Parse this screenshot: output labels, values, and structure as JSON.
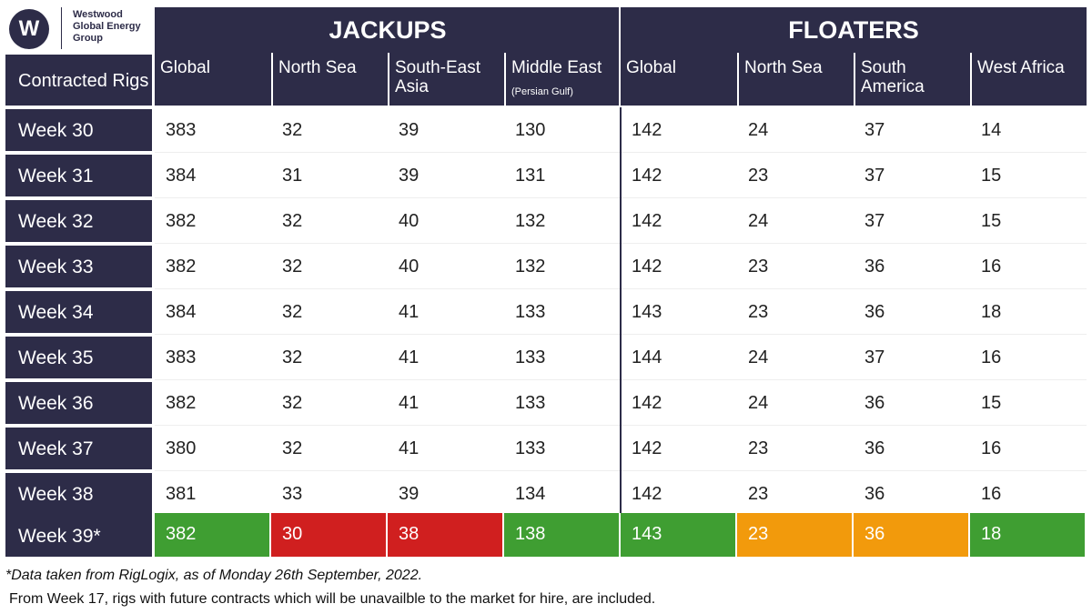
{
  "logo": {
    "mark": "W",
    "lines": [
      "Westwood",
      "Global Energy",
      "Group"
    ]
  },
  "table": {
    "row_header_title": "Contracted Rigs",
    "groups": [
      "JACKUPS",
      "FLOATERS"
    ],
    "columns": [
      {
        "label": "Global"
      },
      {
        "label": "North Sea"
      },
      {
        "label": "South-East Asia"
      },
      {
        "label": "Middle East",
        "note": "(Persian Gulf)"
      },
      {
        "label": "Global"
      },
      {
        "label": "North Sea"
      },
      {
        "label": "South America"
      },
      {
        "label": "West Africa"
      }
    ],
    "rows": [
      {
        "label": "Week 30",
        "values": [
          383,
          32,
          39,
          130,
          142,
          24,
          37,
          14
        ]
      },
      {
        "label": "Week 31",
        "values": [
          384,
          31,
          39,
          131,
          142,
          23,
          37,
          15
        ]
      },
      {
        "label": "Week 32",
        "values": [
          382,
          32,
          40,
          132,
          142,
          24,
          37,
          15
        ]
      },
      {
        "label": "Week 33",
        "values": [
          382,
          32,
          40,
          132,
          142,
          23,
          36,
          16
        ]
      },
      {
        "label": "Week 34",
        "values": [
          384,
          32,
          41,
          133,
          143,
          23,
          36,
          18
        ]
      },
      {
        "label": "Week 35",
        "values": [
          383,
          32,
          41,
          133,
          144,
          24,
          37,
          16
        ]
      },
      {
        "label": "Week 36",
        "values": [
          382,
          32,
          41,
          133,
          142,
          24,
          36,
          15
        ]
      },
      {
        "label": "Week 37",
        "values": [
          380,
          32,
          41,
          133,
          142,
          23,
          36,
          16
        ]
      },
      {
        "label": "Week 38",
        "values": [
          381,
          33,
          39,
          134,
          142,
          23,
          36,
          16
        ]
      },
      {
        "label": "Week 39*",
        "values": [
          382,
          30,
          38,
          138,
          143,
          23,
          36,
          18
        ],
        "colors": [
          "#3f9e32",
          "#d01f1f",
          "#d01f1f",
          "#3f9e32",
          "#3f9e32",
          "#f29a0c",
          "#f29a0c",
          "#3f9e32"
        ]
      }
    ]
  },
  "footnotes": [
    "*Data taken from RigLogix, as of Monday 26th September, 2022.",
    "From Week 17, rigs with future contracts which will be unavailble to the market for hire, are included."
  ]
}
